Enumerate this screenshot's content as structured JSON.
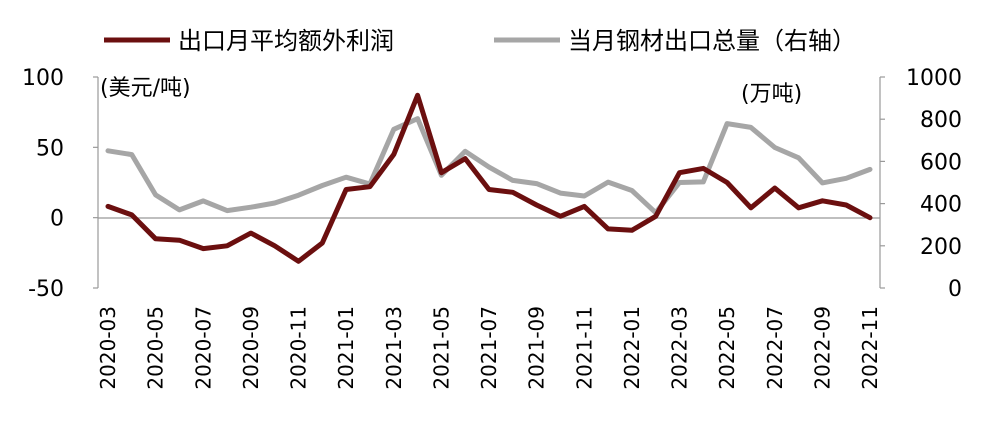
{
  "chart_data": {
    "type": "line",
    "x": [
      "2020-03",
      "2020-04",
      "2020-05",
      "2020-06",
      "2020-07",
      "2020-08",
      "2020-09",
      "2020-10",
      "2020-11",
      "2020-12",
      "2021-01",
      "2021-02",
      "2021-03",
      "2021-04",
      "2021-05",
      "2021-06",
      "2021-07",
      "2021-08",
      "2021-09",
      "2021-10",
      "2021-11",
      "2021-12",
      "2022-01",
      "2022-02",
      "2022-03",
      "2022-04",
      "2022-05",
      "2022-06",
      "2022-07",
      "2022-08",
      "2022-09",
      "2022-10",
      "2022-11"
    ],
    "x_tick_labels": [
      "2020-03",
      "2020-05",
      "2020-07",
      "2020-09",
      "2020-11",
      "2021-01",
      "2021-03",
      "2021-05",
      "2021-07",
      "2021-09",
      "2021-11",
      "2022-01",
      "2022-03",
      "2022-05",
      "2022-07",
      "2022-09",
      "2022-11"
    ],
    "series": [
      {
        "name": "出口月平均额外利润",
        "axis": "left",
        "color": "#6b0f0f",
        "values": [
          8,
          2,
          -15,
          -16,
          -22,
          -20,
          -11,
          -20,
          -31,
          -18,
          20,
          22,
          45,
          87,
          32,
          42,
          20,
          18,
          9,
          1,
          8,
          -8,
          -9,
          1,
          32,
          35,
          25,
          7,
          21,
          7,
          12,
          9,
          0
        ]
      },
      {
        "name": "当月钢材出口总量（右轴）",
        "axis": "right",
        "color": "#a6a6a6",
        "values": [
          650,
          632,
          441,
          370,
          413,
          367,
          383,
          403,
          440,
          486,
          525,
          493,
          752,
          803,
          534,
          648,
          573,
          510,
          495,
          450,
          436,
          502,
          462,
          357,
          500,
          503,
          779,
          761,
          666,
          617,
          498,
          520,
          562
        ]
      }
    ],
    "left_axis": {
      "unit_label": "(美元/吨)",
      "range": [
        -50,
        100
      ],
      "ticks": [
        "100",
        "50",
        "0",
        "-50"
      ]
    },
    "right_axis": {
      "unit_label": "(万吨)",
      "range": [
        0,
        1000
      ],
      "ticks": [
        "1000",
        "800",
        "600",
        "400",
        "200",
        "0"
      ]
    },
    "legend": {
      "placement": "top"
    },
    "grid": false
  }
}
